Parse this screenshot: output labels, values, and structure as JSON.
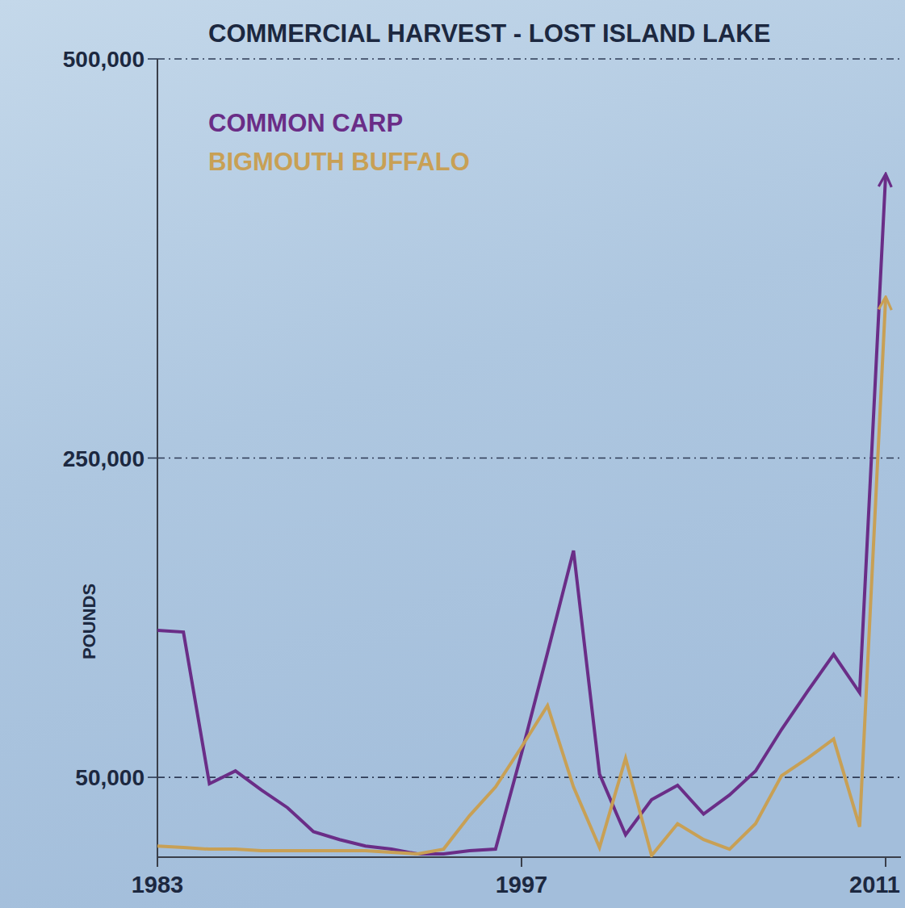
{
  "chart_data": {
    "type": "line",
    "title": "COMMERCIAL HARVEST - LOST ISLAND LAKE",
    "y_label": "POUNDS",
    "x": [
      1983,
      1984,
      1985,
      1986,
      1987,
      1988,
      1989,
      1990,
      1991,
      1992,
      1993,
      1994,
      1995,
      1996,
      1997,
      1998,
      1999,
      2000,
      2001,
      2002,
      2003,
      2004,
      2005,
      2006,
      2007,
      2008,
      2009,
      2010,
      2011
    ],
    "series": [
      {
        "name": "COMMON CARP",
        "color": "#6a2d87",
        "values": [
          142000,
          141000,
          46000,
          54000,
          42000,
          31000,
          16000,
          11000,
          7000,
          5000,
          2000,
          2000,
          4000,
          5000,
          65000,
          128000,
          192000,
          52000,
          14000,
          36000,
          45000,
          27000,
          39000,
          54000,
          80000,
          104000,
          127000,
          103000,
          427000
        ]
      },
      {
        "name": "BIGMOUTH BUFFALO",
        "color": "#c8a055",
        "values": [
          7000,
          6000,
          5000,
          5000,
          4000,
          4000,
          4000,
          4000,
          4000,
          3000,
          2000,
          5000,
          26000,
          44000,
          69000,
          95000,
          44000,
          6000,
          62000,
          1000,
          21000,
          11000,
          5000,
          21000,
          51000,
          62000,
          74000,
          19000,
          350000
        ]
      }
    ],
    "xlim": [
      1983,
      2011
    ],
    "xticks": [
      1983,
      1997,
      2011
    ],
    "ylim": [
      0,
      500000
    ],
    "yticks": [
      {
        "value": 50000,
        "label": "50,000"
      },
      {
        "value": 250000,
        "label": "250,000"
      },
      {
        "value": 500000,
        "label": "500,000"
      }
    ],
    "grid": true,
    "legend": "upper left"
  }
}
